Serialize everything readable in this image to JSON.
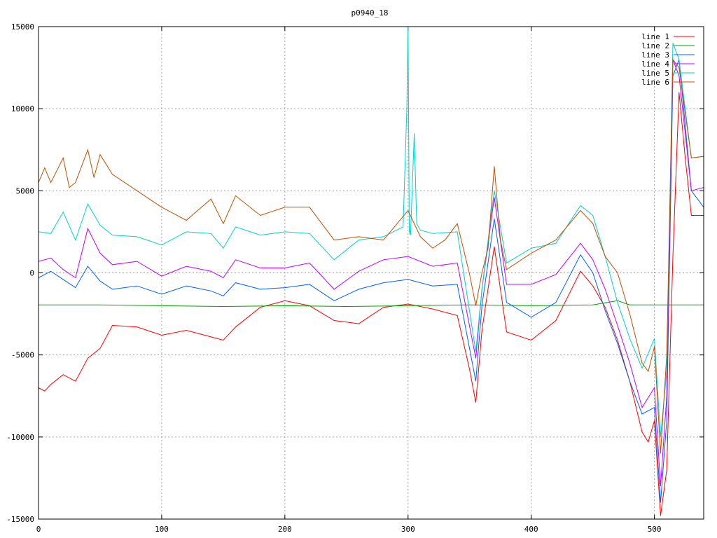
{
  "chart_data": {
    "type": "line",
    "title": "p0940_18",
    "xlabel": "",
    "ylabel": "",
    "xlim": [
      0,
      540
    ],
    "ylim": [
      -15000,
      15000
    ],
    "x_ticks": [
      0,
      100,
      200,
      300,
      400,
      500
    ],
    "y_ticks": [
      -15000,
      -10000,
      -5000,
      0,
      5000,
      10000,
      15000
    ],
    "grid": true,
    "legend_position": "top-right",
    "series": [
      {
        "name": "line 1",
        "color": "#ff0000",
        "x": [
          0,
          5,
          10,
          20,
          30,
          40,
          50,
          60,
          80,
          100,
          120,
          140,
          150,
          160,
          180,
          200,
          220,
          240,
          260,
          280,
          300,
          320,
          340,
          350,
          355,
          360,
          370,
          380,
          400,
          420,
          440,
          450,
          460,
          470,
          480,
          490,
          495,
          500,
          505,
          510,
          515,
          520,
          525,
          530,
          540
        ],
        "y": [
          -7000,
          -7200,
          -6800,
          -6200,
          -6600,
          -5200,
          -4600,
          -3200,
          -3300,
          -3800,
          -3500,
          -3900,
          -4100,
          -3300,
          -2100,
          -1700,
          -2000,
          -2900,
          -3100,
          -2100,
          -1900,
          -2200,
          -2600,
          -5900,
          -7900,
          -3500,
          1600,
          -3600,
          -4100,
          -2900,
          100,
          -800,
          -2100,
          -4100,
          -6600,
          -9700,
          -10300,
          -9000,
          -14800,
          -12000,
          1000,
          11000,
          7000,
          3500,
          3500
        ]
      },
      {
        "name": "line 2",
        "color": "#00a000",
        "x": [
          0,
          50,
          100,
          150,
          200,
          250,
          300,
          350,
          400,
          450,
          470,
          480,
          500,
          540
        ],
        "y": [
          -1950,
          -1950,
          -2000,
          -2050,
          -2000,
          -2050,
          -2000,
          -1950,
          -2000,
          -1950,
          -1700,
          -1950,
          -1950,
          -1950
        ]
      },
      {
        "name": "line 3",
        "color": "#0060ff",
        "x": [
          0,
          10,
          20,
          30,
          40,
          50,
          60,
          80,
          100,
          120,
          140,
          150,
          160,
          180,
          200,
          220,
          240,
          260,
          280,
          300,
          320,
          340,
          355,
          360,
          370,
          380,
          400,
          420,
          440,
          450,
          460,
          470,
          480,
          490,
          500,
          505,
          510,
          515,
          520,
          530,
          540
        ],
        "y": [
          -300,
          100,
          -400,
          -900,
          400,
          -500,
          -1000,
          -800,
          -1300,
          -800,
          -1100,
          -1400,
          -600,
          -1000,
          -900,
          -700,
          -1700,
          -1000,
          -600,
          -400,
          -800,
          -700,
          -6600,
          -2000,
          3300,
          -1800,
          -2700,
          -1800,
          1100,
          0,
          -2300,
          -4300,
          -6600,
          -8600,
          -8200,
          -14000,
          -9000,
          12000,
          13000,
          5000,
          4000
        ]
      },
      {
        "name": "line 4",
        "color": "#c000ff",
        "x": [
          0,
          10,
          20,
          30,
          40,
          50,
          60,
          80,
          100,
          120,
          140,
          150,
          160,
          180,
          200,
          220,
          240,
          260,
          280,
          300,
          320,
          340,
          355,
          360,
          370,
          380,
          400,
          420,
          440,
          450,
          460,
          470,
          480,
          490,
          500,
          505,
          510,
          515,
          520,
          530,
          540
        ],
        "y": [
          700,
          900,
          200,
          -300,
          2700,
          1200,
          500,
          700,
          -200,
          400,
          100,
          -300,
          800,
          300,
          300,
          600,
          -1000,
          100,
          800,
          1000,
          400,
          600,
          -5200,
          -1000,
          4600,
          -700,
          -700,
          -100,
          1800,
          800,
          -1000,
          -3200,
          -5500,
          -8200,
          -7000,
          -13000,
          -7500,
          13000,
          12000,
          5000,
          5200
        ]
      },
      {
        "name": "line 5",
        "color": "#00d0d0",
        "x": [
          0,
          10,
          20,
          30,
          40,
          50,
          60,
          80,
          100,
          120,
          140,
          150,
          160,
          180,
          200,
          220,
          240,
          260,
          280,
          296,
          299,
          300,
          301,
          302,
          305,
          307,
          310,
          320,
          340,
          355,
          360,
          370,
          380,
          400,
          420,
          440,
          450,
          460,
          470,
          480,
          490,
          500,
          505,
          510,
          515,
          520,
          530,
          540
        ],
        "y": [
          2500,
          2400,
          3700,
          2000,
          4200,
          2900,
          2300,
          2200,
          1700,
          2500,
          2400,
          1500,
          2800,
          2300,
          2500,
          2400,
          800,
          2000,
          2200,
          2800,
          10000,
          15000,
          2500,
          2300,
          8500,
          3000,
          2600,
          2400,
          2500,
          -4800,
          -1000,
          5000,
          600,
          1500,
          1800,
          4100,
          3500,
          1000,
          -1800,
          -4000,
          -5800,
          -4000,
          -10000,
          -6000,
          14000,
          13000,
          7000,
          7100
        ]
      },
      {
        "name": "line 6",
        "color": "#c05000",
        "x": [
          0,
          5,
          10,
          20,
          25,
          30,
          40,
          45,
          50,
          60,
          80,
          100,
          120,
          140,
          150,
          160,
          180,
          200,
          220,
          240,
          260,
          280,
          300,
          310,
          320,
          330,
          340,
          350,
          355,
          360,
          365,
          370,
          375,
          380,
          400,
          420,
          440,
          450,
          460,
          470,
          480,
          490,
          495,
          500,
          505,
          510,
          515,
          520,
          530,
          540
        ],
        "y": [
          5500,
          6400,
          5500,
          7000,
          5200,
          5500,
          7500,
          5800,
          7200,
          6000,
          5000,
          4000,
          3200,
          4500,
          3000,
          4700,
          3500,
          4000,
          4000,
          2000,
          2200,
          2000,
          3800,
          2200,
          1500,
          2000,
          3000,
          -100,
          -2000,
          0,
          1500,
          6500,
          2000,
          200,
          1200,
          2000,
          3800,
          3000,
          1000,
          0,
          -2500,
          -5500,
          -6000,
          -4500,
          -11000,
          -5000,
          13000,
          12500,
          7000,
          7100
        ]
      }
    ]
  }
}
